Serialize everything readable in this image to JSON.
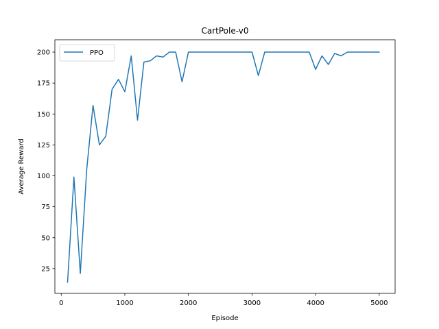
{
  "chart_data": {
    "type": "line",
    "title": "CartPole-v0",
    "xlabel": "Episode",
    "ylabel": "Average Reward",
    "xlim": [
      -100,
      5250
    ],
    "ylim": [
      5,
      210
    ],
    "xticks": [
      0,
      1000,
      2000,
      3000,
      4000,
      5000
    ],
    "yticks": [
      25,
      50,
      75,
      100,
      125,
      150,
      175,
      200
    ],
    "grid": false,
    "legend_position": "top-left",
    "series": [
      {
        "name": "PPO",
        "color": "#1f77b4",
        "x": [
          100,
          200,
          300,
          400,
          500,
          600,
          700,
          800,
          900,
          1000,
          1100,
          1200,
          1300,
          1400,
          1500,
          1600,
          1700,
          1800,
          1900,
          2000,
          2100,
          2200,
          2300,
          2400,
          2500,
          2600,
          2700,
          2800,
          2900,
          3000,
          3100,
          3200,
          3300,
          3400,
          3500,
          3600,
          3700,
          3800,
          3900,
          4000,
          4100,
          4200,
          4300,
          4400,
          4500,
          4600,
          4700,
          4800,
          4900,
          5000
        ],
        "values": [
          14,
          99,
          21,
          105,
          157,
          125,
          132,
          170,
          178,
          168,
          197,
          145,
          192,
          193,
          197,
          196,
          200,
          200,
          176,
          200,
          200,
          200,
          200,
          200,
          200,
          200,
          200,
          200,
          200,
          200,
          181,
          200,
          200,
          200,
          200,
          200,
          200,
          200,
          200,
          186,
          197,
          190,
          199,
          197,
          200,
          200,
          200,
          200,
          200,
          200
        ]
      }
    ]
  }
}
